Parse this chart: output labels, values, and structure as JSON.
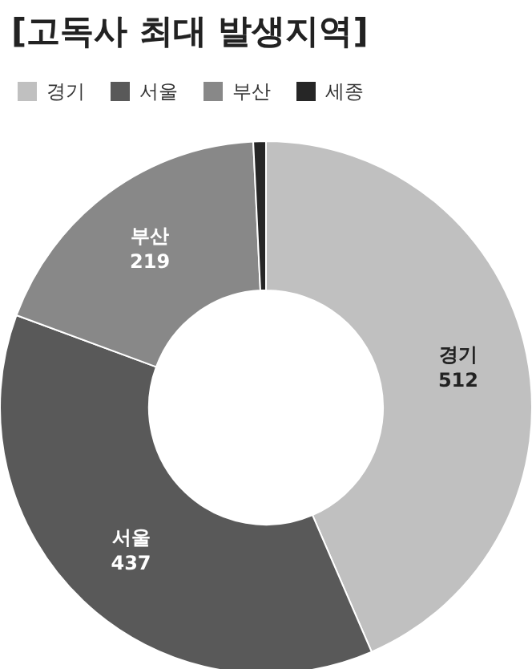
{
  "chart_data": {
    "type": "donut",
    "title": "[고독사 최대 발생지역]",
    "categories": [
      "경기",
      "서울",
      "부산",
      "세종"
    ],
    "values": [
      512,
      437,
      219,
      9
    ],
    "colors": [
      "#c0c0c0",
      "#595959",
      "#888888",
      "#262626"
    ],
    "value_labels": [
      "512",
      "437",
      "219",
      null
    ],
    "legend": "top left"
  }
}
